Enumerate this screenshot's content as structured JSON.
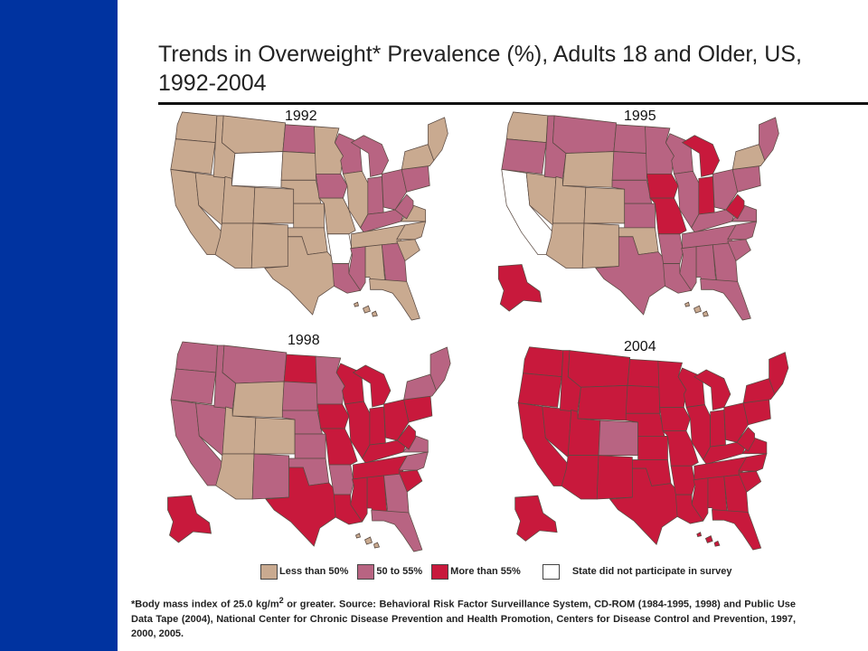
{
  "title": "Trends in Overweight* Prevalence (%), Adults 18 and Older, US, 1992-2004",
  "colors": {
    "less_than_50": "#c9aa90",
    "50_to_55": "#b86482",
    "more_than_55": "#c8193c",
    "not_participating": "#ffffff",
    "sidebar": "#0033a0"
  },
  "maps": [
    {
      "year": "1992",
      "alaska": "",
      "hawaii": "less_than_50",
      "states": {
        "WA": "less_than_50",
        "OR": "less_than_50",
        "CA": "less_than_50",
        "NV": "less_than_50",
        "ID": "less_than_50",
        "MT": "less_than_50",
        "WY": "not_participating",
        "UT": "less_than_50",
        "AZ": "less_than_50",
        "CO": "less_than_50",
        "NM": "less_than_50",
        "ND": "50_to_55",
        "SD": "less_than_50",
        "NE": "less_than_50",
        "KS": "less_than_50",
        "OK": "less_than_50",
        "TX": "less_than_50",
        "MN": "less_than_50",
        "IA": "50_to_55",
        "MO": "less_than_50",
        "AR": "not_participating",
        "LA": "50_to_55",
        "WI": "50_to_55",
        "IL": "less_than_50",
        "MI": "50_to_55",
        "IN": "50_to_55",
        "OH": "50_to_55",
        "KY": "50_to_55",
        "TN": "less_than_50",
        "MS": "50_to_55",
        "AL": "less_than_50",
        "GA": "50_to_55",
        "FL": "less_than_50",
        "SC": "less_than_50",
        "NC": "less_than_50",
        "VA": "less_than_50",
        "WV": "50_to_55",
        "PA": "50_to_55",
        "NY": "less_than_50",
        "NE_US": "less_than_50"
      }
    },
    {
      "year": "1995",
      "alaska": "more_than_55",
      "hawaii": "less_than_50",
      "states": {
        "WA": "less_than_50",
        "OR": "50_to_55",
        "CA": "not_participating",
        "NV": "less_than_50",
        "ID": "50_to_55",
        "MT": "50_to_55",
        "WY": "less_than_50",
        "UT": "less_than_50",
        "AZ": "less_than_50",
        "CO": "less_than_50",
        "NM": "less_than_50",
        "ND": "50_to_55",
        "SD": "50_to_55",
        "NE": "50_to_55",
        "KS": "50_to_55",
        "OK": "less_than_50",
        "TX": "50_to_55",
        "MN": "50_to_55",
        "IA": "more_than_55",
        "MO": "more_than_55",
        "AR": "50_to_55",
        "LA": "50_to_55",
        "WI": "50_to_55",
        "IL": "50_to_55",
        "MI": "more_than_55",
        "IN": "more_than_55",
        "OH": "50_to_55",
        "KY": "50_to_55",
        "TN": "50_to_55",
        "MS": "50_to_55",
        "AL": "50_to_55",
        "GA": "50_to_55",
        "FL": "50_to_55",
        "SC": "50_to_55",
        "NC": "50_to_55",
        "VA": "50_to_55",
        "WV": "more_than_55",
        "PA": "50_to_55",
        "NY": "less_than_50",
        "NE_US": "50_to_55"
      }
    },
    {
      "year": "1998",
      "alaska": "more_than_55",
      "hawaii": "less_than_50",
      "states": {
        "WA": "50_to_55",
        "OR": "50_to_55",
        "CA": "50_to_55",
        "NV": "50_to_55",
        "ID": "50_to_55",
        "MT": "50_to_55",
        "WY": "less_than_50",
        "UT": "less_than_50",
        "AZ": "less_than_50",
        "CO": "less_than_50",
        "NM": "50_to_55",
        "ND": "more_than_55",
        "SD": "50_to_55",
        "NE": "50_to_55",
        "KS": "50_to_55",
        "OK": "50_to_55",
        "TX": "more_than_55",
        "MN": "50_to_55",
        "IA": "more_than_55",
        "MO": "more_than_55",
        "AR": "50_to_55",
        "LA": "more_than_55",
        "WI": "more_than_55",
        "IL": "more_than_55",
        "MI": "more_than_55",
        "IN": "more_than_55",
        "OH": "more_than_55",
        "KY": "more_than_55",
        "TN": "more_than_55",
        "MS": "more_than_55",
        "AL": "more_than_55",
        "GA": "50_to_55",
        "FL": "50_to_55",
        "SC": "more_than_55",
        "NC": "50_to_55",
        "VA": "50_to_55",
        "WV": "more_than_55",
        "PA": "more_than_55",
        "NY": "50_to_55",
        "NE_US": "50_to_55"
      }
    },
    {
      "year": "2004",
      "alaska": "more_than_55",
      "hawaii": "more_than_55",
      "states": {
        "WA": "more_than_55",
        "OR": "more_than_55",
        "CA": "more_than_55",
        "NV": "more_than_55",
        "ID": "more_than_55",
        "MT": "more_than_55",
        "WY": "more_than_55",
        "UT": "more_than_55",
        "AZ": "more_than_55",
        "CO": "50_to_55",
        "NM": "more_than_55",
        "ND": "more_than_55",
        "SD": "more_than_55",
        "NE": "more_than_55",
        "KS": "more_than_55",
        "OK": "more_than_55",
        "TX": "more_than_55",
        "MN": "more_than_55",
        "IA": "more_than_55",
        "MO": "more_than_55",
        "AR": "more_than_55",
        "LA": "more_than_55",
        "WI": "more_than_55",
        "IL": "more_than_55",
        "MI": "more_than_55",
        "IN": "more_than_55",
        "OH": "more_than_55",
        "KY": "more_than_55",
        "TN": "more_than_55",
        "MS": "more_than_55",
        "AL": "more_than_55",
        "GA": "more_than_55",
        "FL": "more_than_55",
        "SC": "more_than_55",
        "NC": "more_than_55",
        "VA": "more_than_55",
        "WV": "more_than_55",
        "PA": "more_than_55",
        "NY": "more_than_55",
        "NE_US": "more_than_55"
      }
    }
  ],
  "legend": [
    {
      "key": "less_than_50",
      "label": "Less than 50%"
    },
    {
      "key": "50_to_55",
      "label": "50 to 55%"
    },
    {
      "key": "more_than_55",
      "label": "More than 55%"
    },
    {
      "key": "not_participating",
      "label": "State did not participate in survey"
    }
  ],
  "footnote_part1": "*Body mass index of 25.0 kg/m",
  "footnote_sup": "2",
  "footnote_part2": " or greater. Source: Behavioral Risk Factor Surveillance System, CD-ROM (1984-1995, 1998) and Public Use Data Tape (2004), National Center for Chronic Disease Prevention and Health Promotion, Centers for Disease Control and Prevention, 1997, 2000, 2005."
}
